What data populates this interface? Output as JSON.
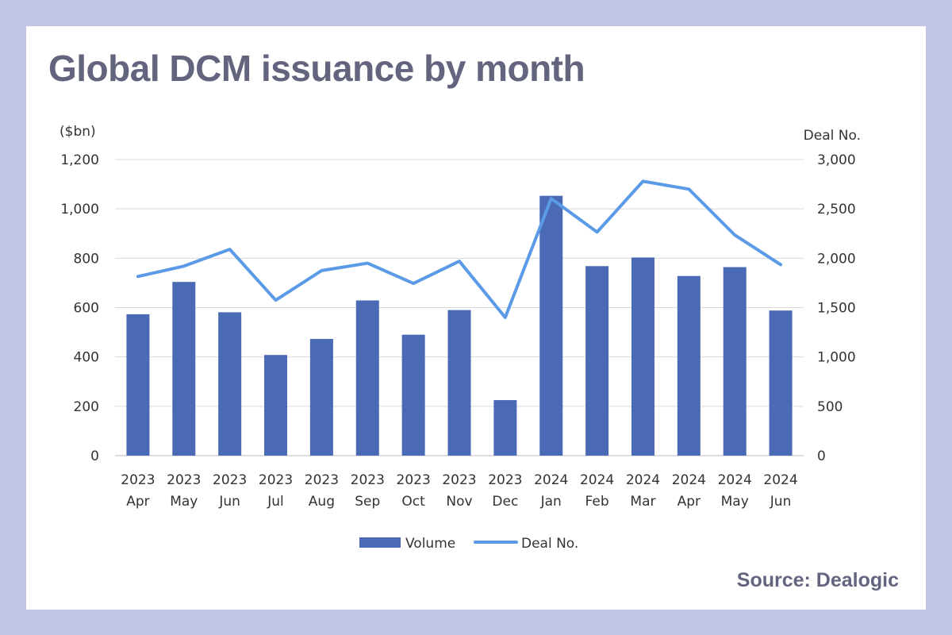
{
  "title": "Global DCM issuance by month",
  "source": "Source: Dealogic",
  "chart_data": {
    "type": "bar+line",
    "title": "Global DCM issuance by month",
    "categories": [
      [
        "2023",
        "Apr"
      ],
      [
        "2023",
        "May"
      ],
      [
        "2023",
        "Jun"
      ],
      [
        "2023",
        "Jul"
      ],
      [
        "2023",
        "Aug"
      ],
      [
        "2023",
        "Sep"
      ],
      [
        "2023",
        "Oct"
      ],
      [
        "2023",
        "Nov"
      ],
      [
        "2023",
        "Dec"
      ],
      [
        "2024",
        "Jan"
      ],
      [
        "2024",
        "Feb"
      ],
      [
        "2024",
        "Mar"
      ],
      [
        "2024",
        "Apr"
      ],
      [
        "2024",
        "May"
      ],
      [
        "2024",
        "Jun"
      ]
    ],
    "left_axis": {
      "label": "($bn)",
      "range": [
        0,
        1200
      ],
      "ticks": [
        0,
        200,
        400,
        600,
        800,
        1000,
        1200
      ],
      "tick_labels": [
        "0",
        "200",
        "400",
        "600",
        "800",
        "1,000",
        "1,200"
      ]
    },
    "right_axis": {
      "label": "Deal No.",
      "range": [
        0,
        3000
      ],
      "ticks": [
        0,
        500,
        1000,
        1500,
        2000,
        2500,
        3000
      ],
      "tick_labels": [
        "0",
        "500",
        "1,000",
        "1,500",
        "2,000",
        "2,500",
        "3,000"
      ]
    },
    "series": [
      {
        "name": "Volume",
        "type": "bar",
        "axis": "left",
        "color": "#4a6ab5",
        "values": [
          573,
          704,
          581,
          408,
          473,
          629,
          490,
          590,
          225,
          1053,
          768,
          803,
          728,
          764,
          588
        ]
      },
      {
        "name": "Deal No.",
        "type": "line",
        "axis": "right",
        "color": "#5b9ae6",
        "values": [
          1815,
          1920,
          2090,
          1575,
          1875,
          1950,
          1745,
          1970,
          1400,
          2605,
          2265,
          2780,
          2700,
          2235,
          1935
        ]
      }
    ],
    "grid": true,
    "legend_position": "bottom-center"
  }
}
